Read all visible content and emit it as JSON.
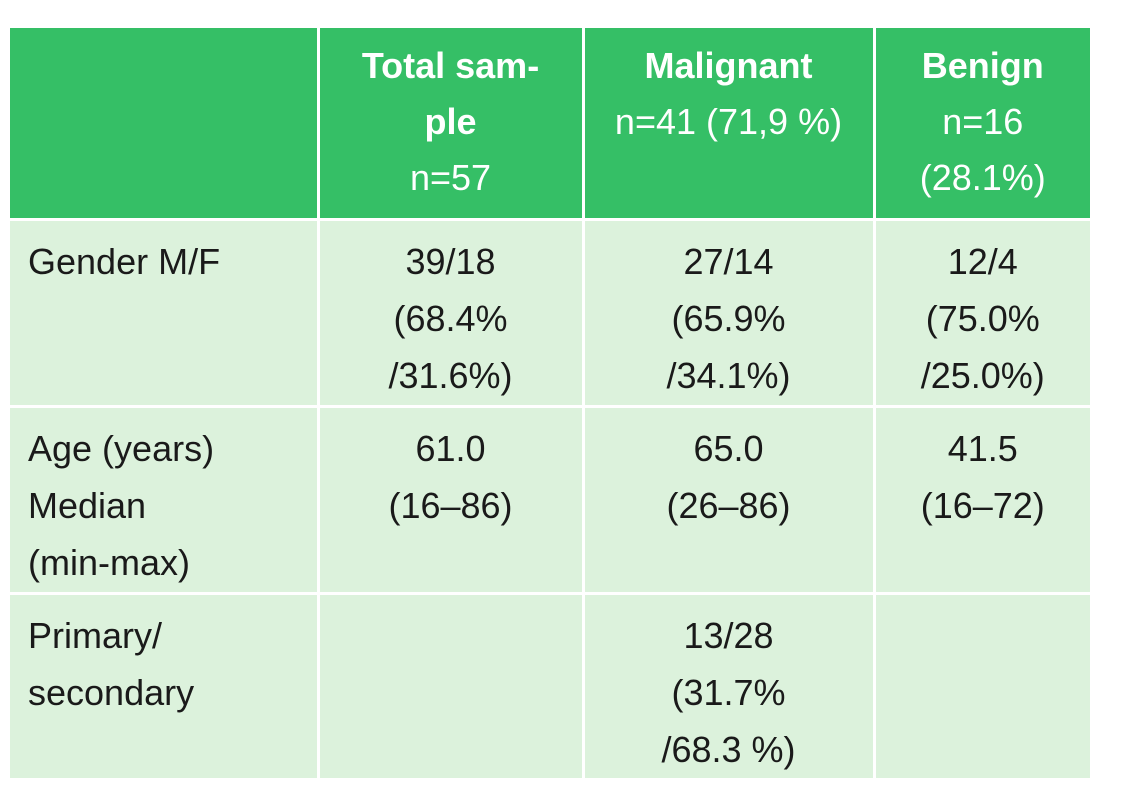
{
  "table": {
    "headers": [
      {
        "title": "",
        "sub": []
      },
      {
        "title_lines": [
          "Total sam-",
          "ple"
        ],
        "sub": [
          "n=57"
        ]
      },
      {
        "title_lines": [
          "Malignant"
        ],
        "sub": [
          "n=41 (71,9 %)"
        ]
      },
      {
        "title_lines": [
          "Benign"
        ],
        "sub": [
          "n=16",
          "(28.1%)"
        ]
      }
    ],
    "rows": [
      {
        "label": [
          "Gender M/F"
        ],
        "cells": [
          [
            "39/18",
            "(68.4%",
            "/31.6%)"
          ],
          [
            "27/14",
            "(65.9%",
            "/34.1%)"
          ],
          [
            "12/4",
            "(75.0%",
            "/25.0%)"
          ]
        ]
      },
      {
        "label": [
          "Age (years)",
          "Median",
          "(min-max)"
        ],
        "cells": [
          [
            "61.0",
            "(16–86)"
          ],
          [
            "65.0",
            "(26–86)"
          ],
          [
            "41.5",
            "(16–72)"
          ]
        ]
      },
      {
        "label": [
          "Primary/",
          "secondary"
        ],
        "cells": [
          [],
          [
            "13/28",
            "(31.7%",
            "/68.3 %)"
          ],
          []
        ]
      }
    ]
  },
  "colors": {
    "header_bg": "#35bf66",
    "body_bg": "#dcf2dc",
    "header_text": "#ffffff",
    "body_text": "#1a1a1a"
  }
}
